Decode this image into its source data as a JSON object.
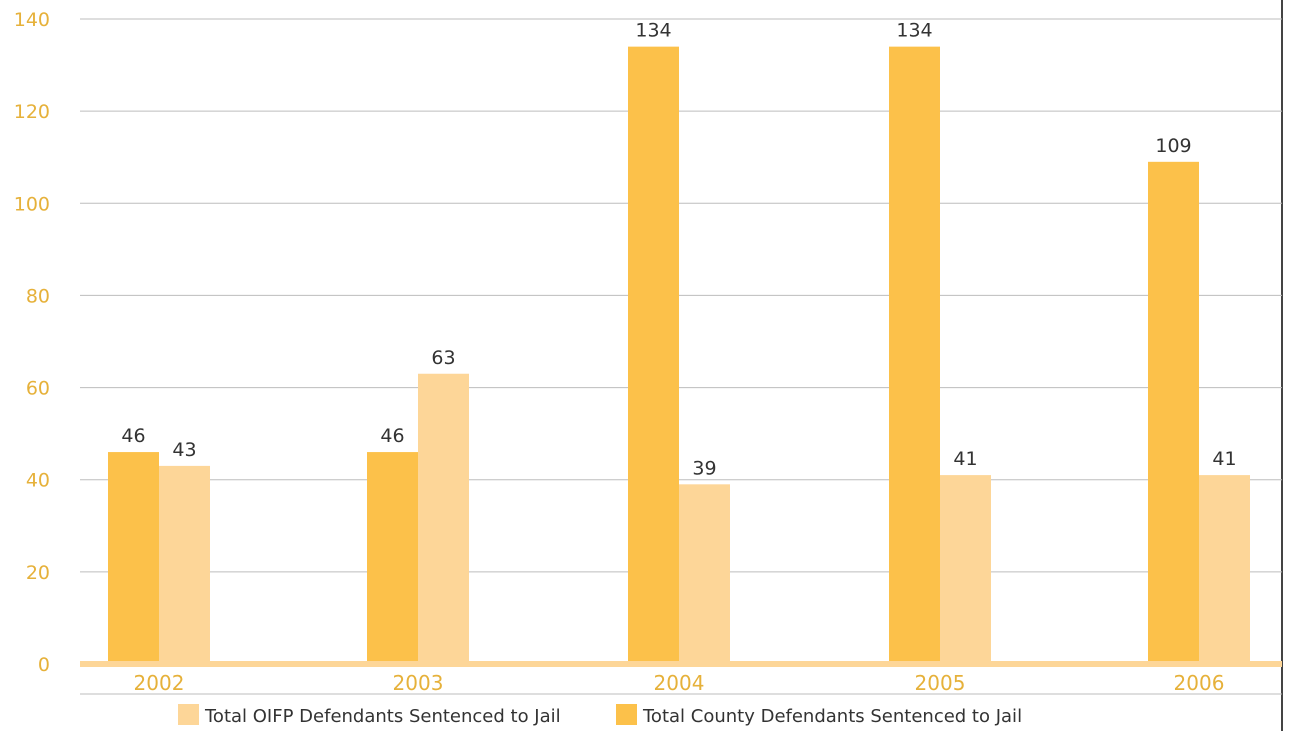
{
  "chart_data": {
    "type": "bar",
    "categories": [
      "2002",
      "2003",
      "2004",
      "2005",
      "2006"
    ],
    "series": [
      {
        "name": "Total County Defendants Sentenced to Jail",
        "values": [
          46,
          46,
          134,
          134,
          109
        ],
        "color": "#fcc14a"
      },
      {
        "name": "Total OIFP Defendants Sentenced to Jail",
        "values": [
          43,
          63,
          39,
          41,
          41
        ],
        "color": "#fdd698"
      }
    ],
    "value_labels": [
      [
        "46",
        "46",
        "134",
        "134",
        "109"
      ],
      [
        "43",
        "63",
        "39",
        "41",
        "41"
      ]
    ],
    "ylim": [
      0,
      140
    ],
    "yticks": [
      0,
      20,
      40,
      60,
      80,
      100,
      120,
      140
    ],
    "grid": true,
    "legend": {
      "position": "bottom",
      "order": [
        1,
        0
      ]
    },
    "colors": {
      "axis_text": "#e6b13a",
      "grid": "#bdbdbd",
      "baseline": "#fdd698"
    }
  }
}
